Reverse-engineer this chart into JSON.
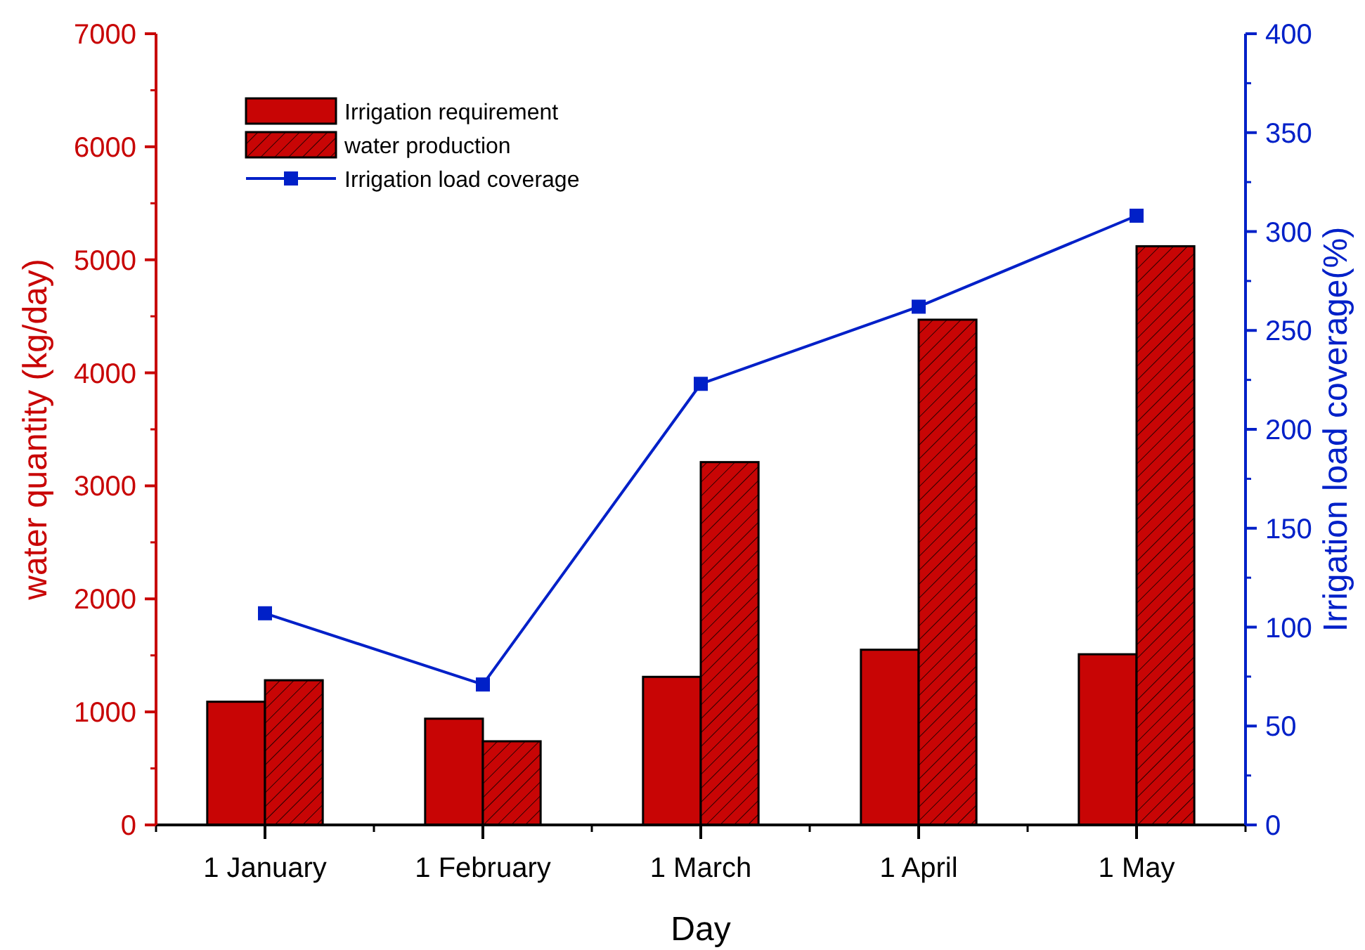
{
  "chart_data": {
    "type": "bar",
    "xlabel": "Day",
    "ylabel": "water quantity (kg/day)",
    "y2label": "Irrigation load coverage(%)",
    "categories": [
      "1 January",
      "1 February",
      "1 March",
      "1 April",
      "1 May"
    ],
    "series": [
      {
        "name": "Irrigation requirement",
        "color": "#c80505",
        "values": [
          1090,
          940,
          1310,
          1550,
          1510
        ]
      },
      {
        "name": "water production",
        "color": "#c80505",
        "values": [
          1280,
          740,
          3210,
          4470,
          5120
        ]
      },
      {
        "name": "Irrigation load coverage",
        "type": "line",
        "axis": "y2",
        "color": "#0020c8",
        "marker": "square",
        "values": [
          107,
          71,
          223,
          262,
          308
        ]
      }
    ],
    "ylim": [
      0,
      7000
    ],
    "yticks": [
      0,
      1000,
      2000,
      3000,
      4000,
      5000,
      6000,
      7000
    ],
    "y2lim": [
      0,
      400
    ],
    "y2ticks": [
      0,
      50,
      100,
      150,
      200,
      250,
      300,
      350,
      400
    ],
    "legend": "top left",
    "grid": false
  }
}
